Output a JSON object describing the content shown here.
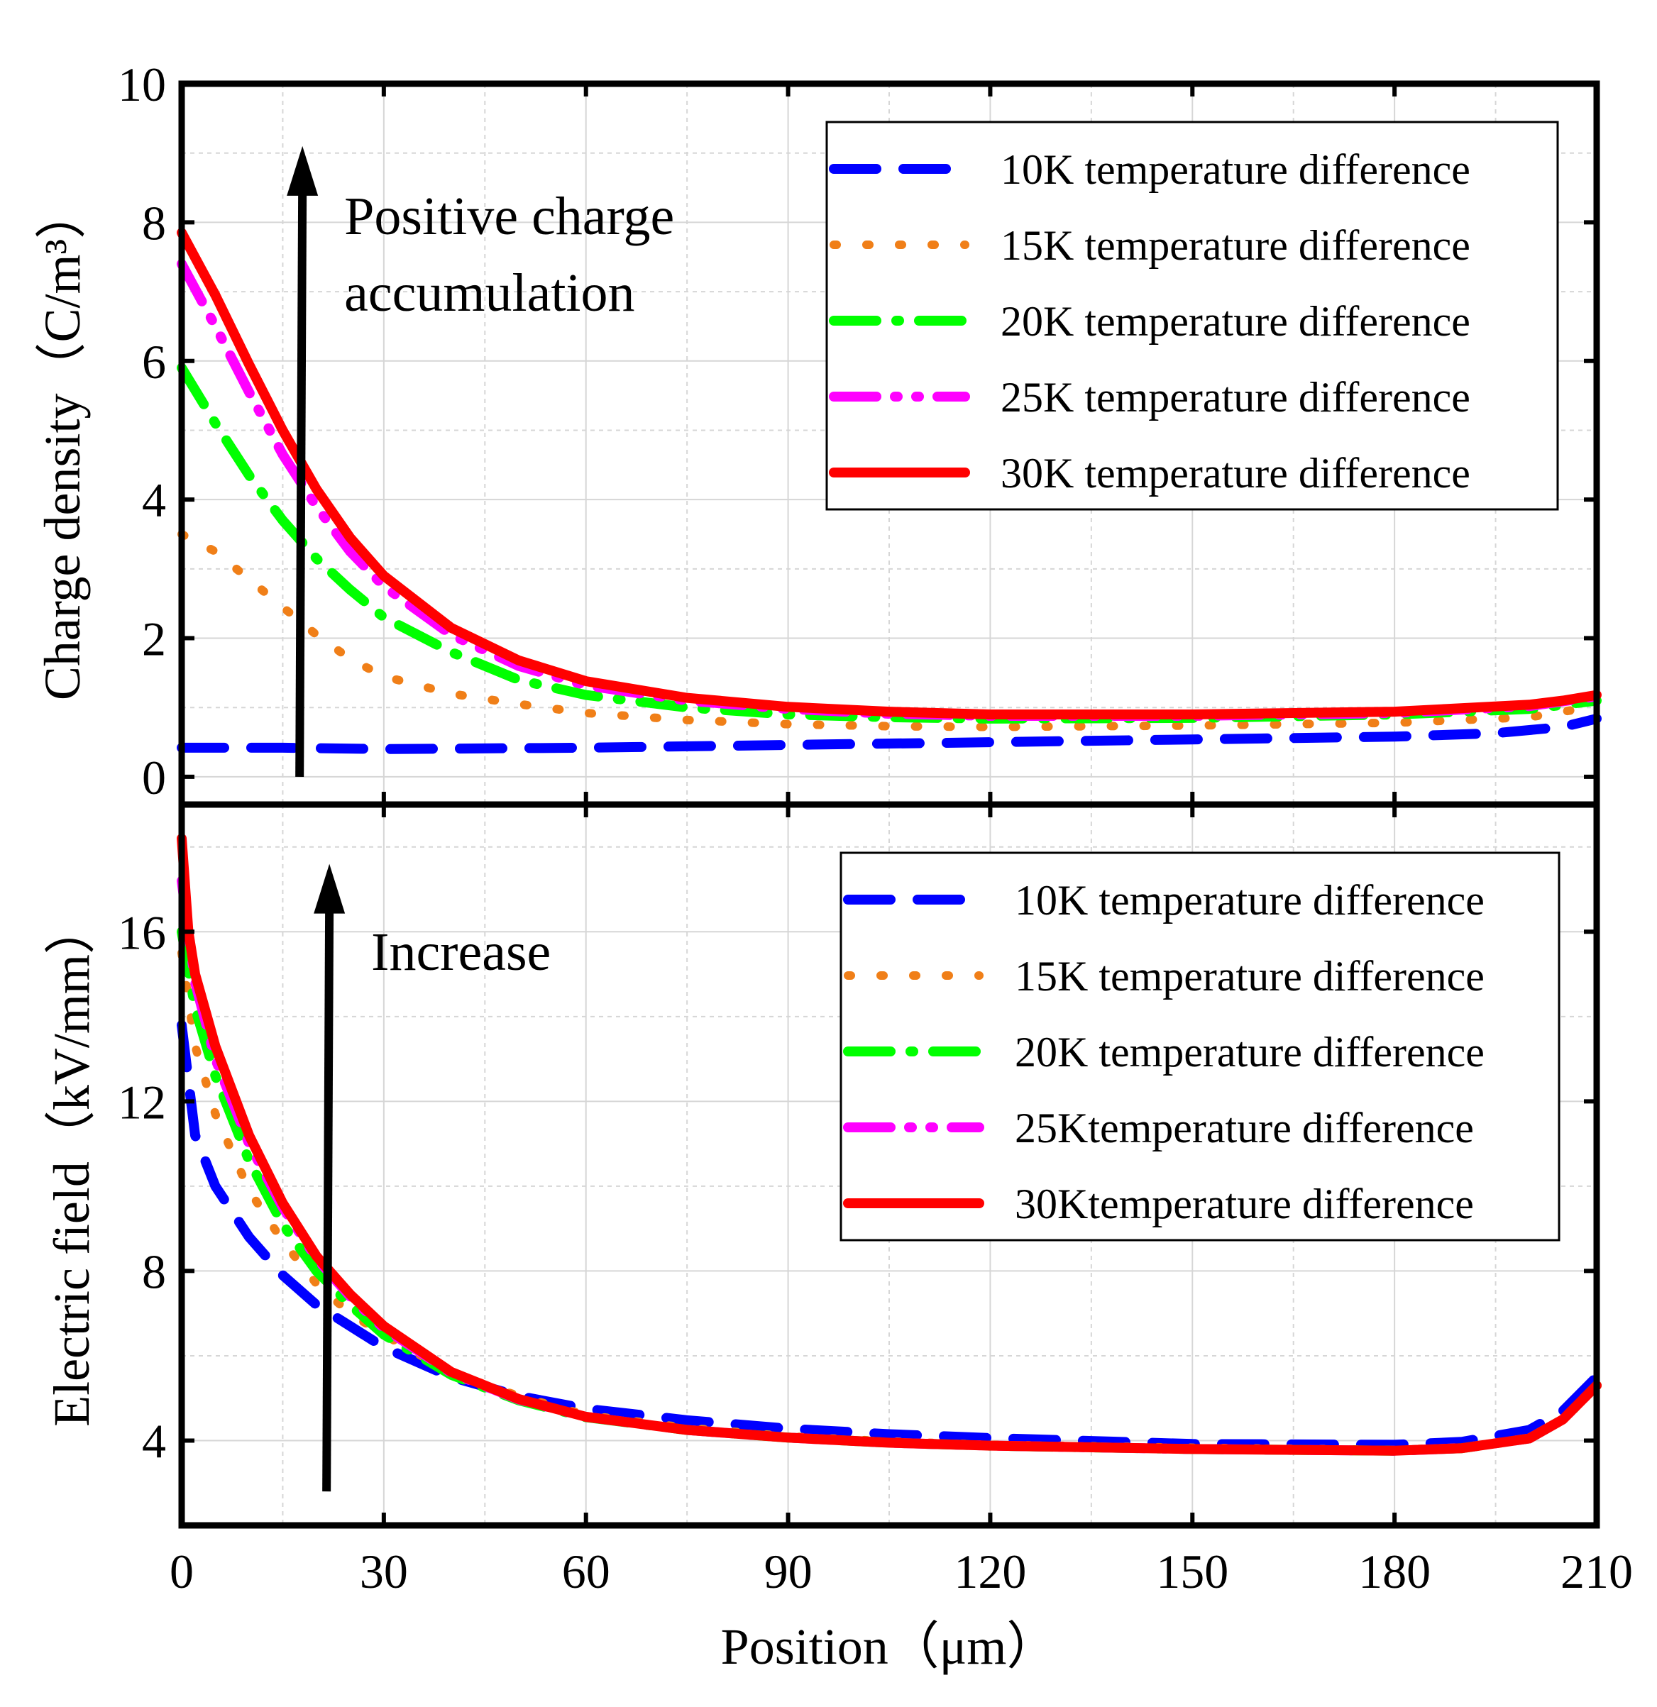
{
  "chart_data": [
    {
      "type": "line",
      "panel": "top",
      "ylabel": "Charge density（C/m³）",
      "xlabel": "",
      "xlim": [
        0,
        210
      ],
      "ylim": [
        -0.4,
        10
      ],
      "yticks": [
        0,
        2,
        4,
        6,
        8,
        10
      ],
      "grid": true,
      "legend_position": "top-right",
      "annotation": {
        "lines": [
          "Positive charge",
          "accumulation"
        ],
        "x": 17.5,
        "y_from": 0,
        "y_to": 9.1
      },
      "series": [
        {
          "name": "10K temperature difference",
          "color": "#0000ff",
          "style": "dash",
          "x": [
            0,
            15,
            30,
            60,
            90,
            120,
            150,
            180,
            195,
            205,
            210
          ],
          "y": [
            0.42,
            0.42,
            0.4,
            0.42,
            0.46,
            0.5,
            0.54,
            0.58,
            0.63,
            0.72,
            0.84
          ]
        },
        {
          "name": "15K temperature difference",
          "color": "#f07f18",
          "style": "dot",
          "x": [
            0,
            5,
            10,
            15,
            20,
            25,
            30,
            40,
            50,
            60,
            75,
            90,
            105,
            120,
            150,
            180,
            200,
            210
          ],
          "y": [
            3.5,
            3.25,
            2.85,
            2.45,
            2.05,
            1.7,
            1.45,
            1.2,
            1.05,
            0.92,
            0.82,
            0.76,
            0.73,
            0.72,
            0.74,
            0.78,
            0.86,
            1.02
          ]
        },
        {
          "name": "20K temperature difference",
          "color": "#00ff00",
          "style": "dashdot",
          "x": [
            0,
            5,
            10,
            15,
            20,
            25,
            30,
            40,
            50,
            60,
            75,
            90,
            105,
            120,
            150,
            180,
            200,
            210
          ],
          "y": [
            5.9,
            5.1,
            4.35,
            3.7,
            3.15,
            2.7,
            2.3,
            1.8,
            1.4,
            1.18,
            1.0,
            0.9,
            0.86,
            0.84,
            0.85,
            0.9,
            0.98,
            1.1
          ]
        },
        {
          "name": "25K temperature difference",
          "color": "#ff00ff",
          "style": "dashdotdot",
          "x": [
            0,
            5,
            10,
            15,
            20,
            25,
            30,
            40,
            50,
            60,
            75,
            90,
            105,
            120,
            150,
            180,
            200,
            210
          ],
          "y": [
            7.4,
            6.5,
            5.55,
            4.65,
            3.9,
            3.25,
            2.75,
            2.05,
            1.6,
            1.32,
            1.1,
            0.98,
            0.91,
            0.88,
            0.88,
            0.92,
            1.02,
            1.16
          ]
        },
        {
          "name": "30K temperature difference",
          "color": "#ff0000",
          "style": "solid",
          "x": [
            0,
            5,
            10,
            15,
            20,
            25,
            30,
            40,
            50,
            60,
            75,
            90,
            105,
            120,
            150,
            180,
            200,
            205,
            210
          ],
          "y": [
            7.85,
            6.95,
            5.95,
            5.0,
            4.15,
            3.45,
            2.9,
            2.15,
            1.68,
            1.38,
            1.14,
            1.01,
            0.94,
            0.9,
            0.9,
            0.94,
            1.04,
            1.1,
            1.18
          ]
        }
      ]
    },
    {
      "type": "line",
      "panel": "bottom",
      "ylabel": "Electric field（kV/mm）",
      "xlabel": "Position（μm）",
      "xlim": [
        0,
        210
      ],
      "ylim": [
        2,
        19
      ],
      "yticks": [
        4,
        8,
        12,
        16
      ],
      "xticks": [
        0,
        30,
        60,
        90,
        120,
        150,
        180,
        210
      ],
      "grid": true,
      "legend_position": "top-right",
      "annotation": {
        "lines": [
          "Increase"
        ],
        "x": 21.5,
        "y_from": 2.8,
        "y_to": 17.6
      },
      "series": [
        {
          "name": "10K temperature difference",
          "color": "#0000ff",
          "style": "dash",
          "x": [
            0,
            2,
            5,
            10,
            15,
            20,
            25,
            30,
            40,
            50,
            60,
            75,
            90,
            105,
            120,
            150,
            180,
            190,
            200,
            205,
            210
          ],
          "y": [
            13.8,
            11.2,
            10.0,
            8.8,
            7.9,
            7.2,
            6.7,
            6.2,
            5.5,
            5.05,
            4.75,
            4.48,
            4.28,
            4.15,
            4.06,
            3.92,
            3.9,
            3.97,
            4.25,
            4.7,
            5.5
          ]
        },
        {
          "name": "15K temperature difference",
          "color": "#f07f18",
          "style": "dot",
          "x": [
            0,
            2,
            5,
            10,
            15,
            20,
            25,
            30,
            40,
            50,
            60,
            75,
            90,
            105,
            120,
            150,
            180,
            190,
            200,
            205,
            210
          ],
          "y": [
            15.5,
            13.3,
            11.7,
            9.9,
            8.7,
            7.7,
            7.0,
            6.5,
            5.6,
            5.05,
            4.6,
            4.3,
            4.1,
            3.98,
            3.9,
            3.83,
            3.78,
            3.84,
            4.05,
            4.5,
            5.3
          ]
        },
        {
          "name": "20K temperature difference",
          "color": "#00ff00",
          "style": "dashdot",
          "x": [
            0,
            2,
            5,
            10,
            15,
            20,
            25,
            30,
            40,
            50,
            60,
            75,
            90,
            105,
            120,
            150,
            180,
            190,
            200,
            205,
            210
          ],
          "y": [
            16.0,
            14.2,
            12.6,
            10.6,
            9.1,
            8.0,
            7.2,
            6.5,
            5.55,
            4.95,
            4.55,
            4.25,
            4.07,
            3.95,
            3.88,
            3.8,
            3.76,
            3.82,
            4.05,
            4.5,
            5.3
          ]
        },
        {
          "name": "25Ktemperature difference",
          "color": "#ff00ff",
          "style": "dashdotdot",
          "x": [
            0,
            2,
            5,
            10,
            15,
            20,
            25,
            30,
            40,
            50,
            60,
            75,
            90,
            105,
            120,
            150,
            180,
            190,
            200,
            205,
            210
          ],
          "y": [
            17.2,
            14.8,
            13.0,
            11.0,
            9.5,
            8.3,
            7.4,
            6.65,
            5.6,
            4.97,
            4.56,
            4.25,
            4.07,
            3.95,
            3.88,
            3.8,
            3.76,
            3.82,
            4.05,
            4.5,
            5.3
          ]
        },
        {
          "name": "30Ktemperature difference",
          "color": "#ff0000",
          "style": "solid",
          "x": [
            0,
            1,
            2,
            5,
            10,
            15,
            20,
            25,
            30,
            40,
            50,
            60,
            75,
            90,
            105,
            120,
            150,
            180,
            190,
            200,
            205,
            210
          ],
          "y": [
            18.2,
            16.0,
            15.0,
            13.3,
            11.2,
            9.6,
            8.35,
            7.45,
            6.7,
            5.62,
            4.98,
            4.56,
            4.25,
            4.07,
            3.95,
            3.88,
            3.8,
            3.76,
            3.82,
            4.05,
            4.5,
            5.3
          ]
        }
      ]
    }
  ]
}
